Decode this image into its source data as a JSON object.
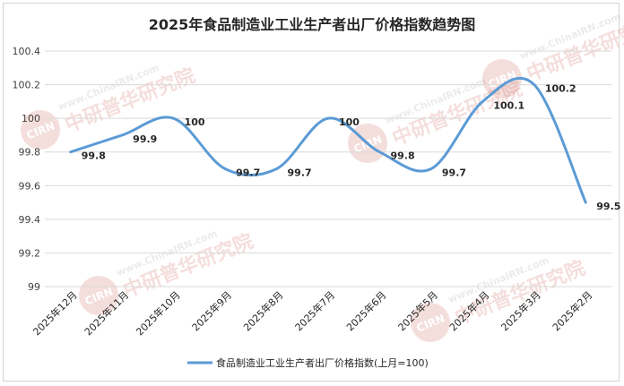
{
  "chart_data": {
    "type": "line",
    "title": "2025年食品制造业工业生产者出厂价格指数趋势图",
    "categories": [
      "2025年12月",
      "2025年11月",
      "2025年10月",
      "2025年9月",
      "2025年8月",
      "2025年7月",
      "2025年6月",
      "2025年5月",
      "2025年4月",
      "2025年3月",
      "2025年2月"
    ],
    "series": [
      {
        "name": "食品制造业工业生产者出厂价格指数(上月=100)",
        "values": [
          99.8,
          99.9,
          100,
          99.7,
          99.7,
          100,
          99.8,
          99.7,
          100.1,
          100.2,
          99.5
        ],
        "labels": [
          "99.8",
          "99.9",
          "100",
          "99.7",
          "99.7",
          "100",
          "99.8",
          "99.7",
          "100.1",
          "100.2",
          "99.5"
        ]
      }
    ],
    "yticks": [
      "99",
      "99.2",
      "99.4",
      "99.6",
      "99.8",
      "100",
      "100.2",
      "100.4"
    ],
    "ylim": [
      99,
      100.4
    ],
    "smooth": true,
    "grid": true,
    "legend_position": "bottom",
    "colors": {
      "line": "#5b9bd5",
      "grid": "#d9d9d9"
    }
  },
  "watermark": {
    "url": "www.ChinaIRN.com",
    "brand": "中研普华研究院",
    "logo": "CIRN"
  }
}
